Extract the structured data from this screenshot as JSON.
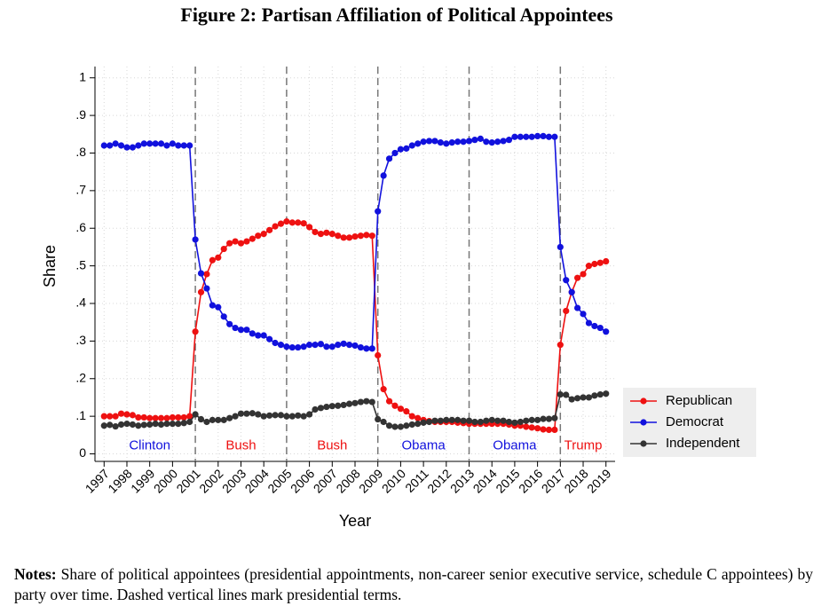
{
  "chart_data": {
    "type": "line",
    "title": "Figure 2: Partisan Affiliation of Political Appointees",
    "x_label": "Year",
    "y_label": "Share",
    "x": [
      1997,
      1997.25,
      1997.5,
      1997.75,
      1998,
      1998.25,
      1998.5,
      1998.75,
      1999,
      1999.25,
      1999.5,
      1999.75,
      2000,
      2000.25,
      2000.5,
      2000.75,
      2001,
      2001.25,
      2001.5,
      2001.75,
      2002,
      2002.25,
      2002.5,
      2002.75,
      2003,
      2003.25,
      2003.5,
      2003.75,
      2004,
      2004.25,
      2004.5,
      2004.75,
      2005,
      2005.25,
      2005.5,
      2005.75,
      2006,
      2006.25,
      2006.5,
      2006.75,
      2007,
      2007.25,
      2007.5,
      2007.75,
      2008,
      2008.25,
      2008.5,
      2008.75,
      2009,
      2009.25,
      2009.5,
      2009.75,
      2010,
      2010.25,
      2010.5,
      2010.75,
      2011,
      2011.25,
      2011.5,
      2011.75,
      2012,
      2012.25,
      2012.5,
      2012.75,
      2013,
      2013.25,
      2013.5,
      2013.75,
      2014,
      2014.25,
      2014.5,
      2014.75,
      2015,
      2015.25,
      2015.5,
      2015.75,
      2016,
      2016.25,
      2016.5,
      2016.75,
      2017,
      2017.25,
      2017.5,
      2017.75,
      2018,
      2018.25,
      2018.5,
      2018.75,
      2019
    ],
    "series": [
      {
        "name": "Republican",
        "color": "#ee1111",
        "values": [
          0.1,
          0.1,
          0.1,
          0.107,
          0.105,
          0.103,
          0.097,
          0.097,
          0.095,
          0.095,
          0.095,
          0.095,
          0.097,
          0.097,
          0.097,
          0.1,
          0.325,
          0.43,
          0.478,
          0.515,
          0.522,
          0.545,
          0.56,
          0.565,
          0.56,
          0.565,
          0.572,
          0.58,
          0.585,
          0.595,
          0.605,
          0.612,
          0.618,
          0.615,
          0.615,
          0.613,
          0.603,
          0.59,
          0.585,
          0.588,
          0.585,
          0.58,
          0.575,
          0.575,
          0.578,
          0.58,
          0.582,
          0.58,
          0.262,
          0.172,
          0.14,
          0.128,
          0.12,
          0.113,
          0.1,
          0.095,
          0.09,
          0.087,
          0.085,
          0.085,
          0.085,
          0.085,
          0.083,
          0.082,
          0.08,
          0.08,
          0.08,
          0.08,
          0.08,
          0.08,
          0.08,
          0.078,
          0.075,
          0.075,
          0.072,
          0.07,
          0.068,
          0.065,
          0.064,
          0.064,
          0.29,
          0.38,
          0.43,
          0.468,
          0.478,
          0.5,
          0.505,
          0.508,
          0.512
        ]
      },
      {
        "name": "Democrat",
        "color": "#1111dd",
        "values": [
          0.82,
          0.82,
          0.825,
          0.82,
          0.815,
          0.815,
          0.82,
          0.825,
          0.825,
          0.825,
          0.825,
          0.82,
          0.825,
          0.82,
          0.82,
          0.82,
          0.57,
          0.48,
          0.44,
          0.395,
          0.39,
          0.365,
          0.345,
          0.335,
          0.33,
          0.33,
          0.32,
          0.315,
          0.315,
          0.305,
          0.295,
          0.29,
          0.285,
          0.283,
          0.283,
          0.285,
          0.29,
          0.29,
          0.292,
          0.285,
          0.285,
          0.29,
          0.293,
          0.29,
          0.288,
          0.283,
          0.28,
          0.28,
          0.645,
          0.74,
          0.785,
          0.8,
          0.81,
          0.812,
          0.82,
          0.825,
          0.83,
          0.832,
          0.832,
          0.828,
          0.825,
          0.828,
          0.83,
          0.83,
          0.832,
          0.835,
          0.838,
          0.83,
          0.828,
          0.83,
          0.832,
          0.835,
          0.843,
          0.843,
          0.843,
          0.843,
          0.845,
          0.845,
          0.843,
          0.843,
          0.55,
          0.462,
          0.43,
          0.388,
          0.372,
          0.348,
          0.34,
          0.335,
          0.325
        ]
      },
      {
        "name": "Independent",
        "color": "#333333",
        "values": [
          0.075,
          0.077,
          0.073,
          0.078,
          0.08,
          0.078,
          0.075,
          0.077,
          0.078,
          0.08,
          0.078,
          0.08,
          0.08,
          0.08,
          0.082,
          0.085,
          0.105,
          0.092,
          0.085,
          0.09,
          0.09,
          0.09,
          0.095,
          0.1,
          0.107,
          0.107,
          0.108,
          0.105,
          0.1,
          0.102,
          0.103,
          0.103,
          0.1,
          0.1,
          0.102,
          0.1,
          0.105,
          0.118,
          0.122,
          0.125,
          0.127,
          0.128,
          0.13,
          0.133,
          0.135,
          0.138,
          0.14,
          0.138,
          0.092,
          0.085,
          0.075,
          0.072,
          0.072,
          0.075,
          0.078,
          0.08,
          0.083,
          0.085,
          0.088,
          0.088,
          0.09,
          0.09,
          0.09,
          0.088,
          0.088,
          0.085,
          0.085,
          0.088,
          0.09,
          0.088,
          0.088,
          0.085,
          0.083,
          0.085,
          0.088,
          0.09,
          0.09,
          0.093,
          0.093,
          0.095,
          0.158,
          0.157,
          0.145,
          0.148,
          0.15,
          0.15,
          0.155,
          0.158,
          0.16
        ]
      }
    ],
    "xlim": [
      1996.6,
      2019.4
    ],
    "xticks": [
      1997,
      1998,
      1999,
      2000,
      2001,
      2002,
      2003,
      2004,
      2005,
      2006,
      2007,
      2008,
      2009,
      2010,
      2011,
      2012,
      2013,
      2014,
      2015,
      2016,
      2017,
      2018,
      2019
    ],
    "ylim": [
      -0.02,
      1.03
    ],
    "yticks": [
      0,
      {
        "value": 0.1,
        "label": ".1"
      },
      {
        "value": 0.2,
        "label": ".2"
      },
      {
        "value": 0.3,
        "label": ".3"
      },
      {
        "value": 0.4,
        "label": ".4"
      },
      {
        "value": 0.5,
        "label": ".5"
      },
      {
        "value": 0.6,
        "label": ".6"
      },
      {
        "value": 0.7,
        "label": ".7"
      },
      {
        "value": 0.8,
        "label": ".8"
      },
      {
        "value": 0.9,
        "label": ".9"
      },
      1
    ],
    "term_lines": [
      2001,
      2005,
      2009,
      2013,
      2017
    ],
    "annotations": [
      {
        "text": "Clinton",
        "x": 1999,
        "y": 0.021,
        "color": "#1111dd"
      },
      {
        "text": "Bush",
        "x": 2003,
        "y": 0.021,
        "color": "#ee1111"
      },
      {
        "text": "Bush",
        "x": 2007,
        "y": 0.021,
        "color": "#ee1111"
      },
      {
        "text": "Obama",
        "x": 2011,
        "y": 0.021,
        "color": "#1111dd"
      },
      {
        "text": "Obama",
        "x": 2015,
        "y": 0.021,
        "color": "#1111dd"
      },
      {
        "text": "Trump",
        "x": 2018,
        "y": 0.021,
        "color": "#ee1111"
      }
    ],
    "grid": true,
    "legend": "right"
  },
  "notes_label": "Notes:",
  "notes": "Share of political appointees (presidential appointments, non-career senior executive service, schedule C appointees) by party over time. Dashed vertical lines mark presidential terms."
}
